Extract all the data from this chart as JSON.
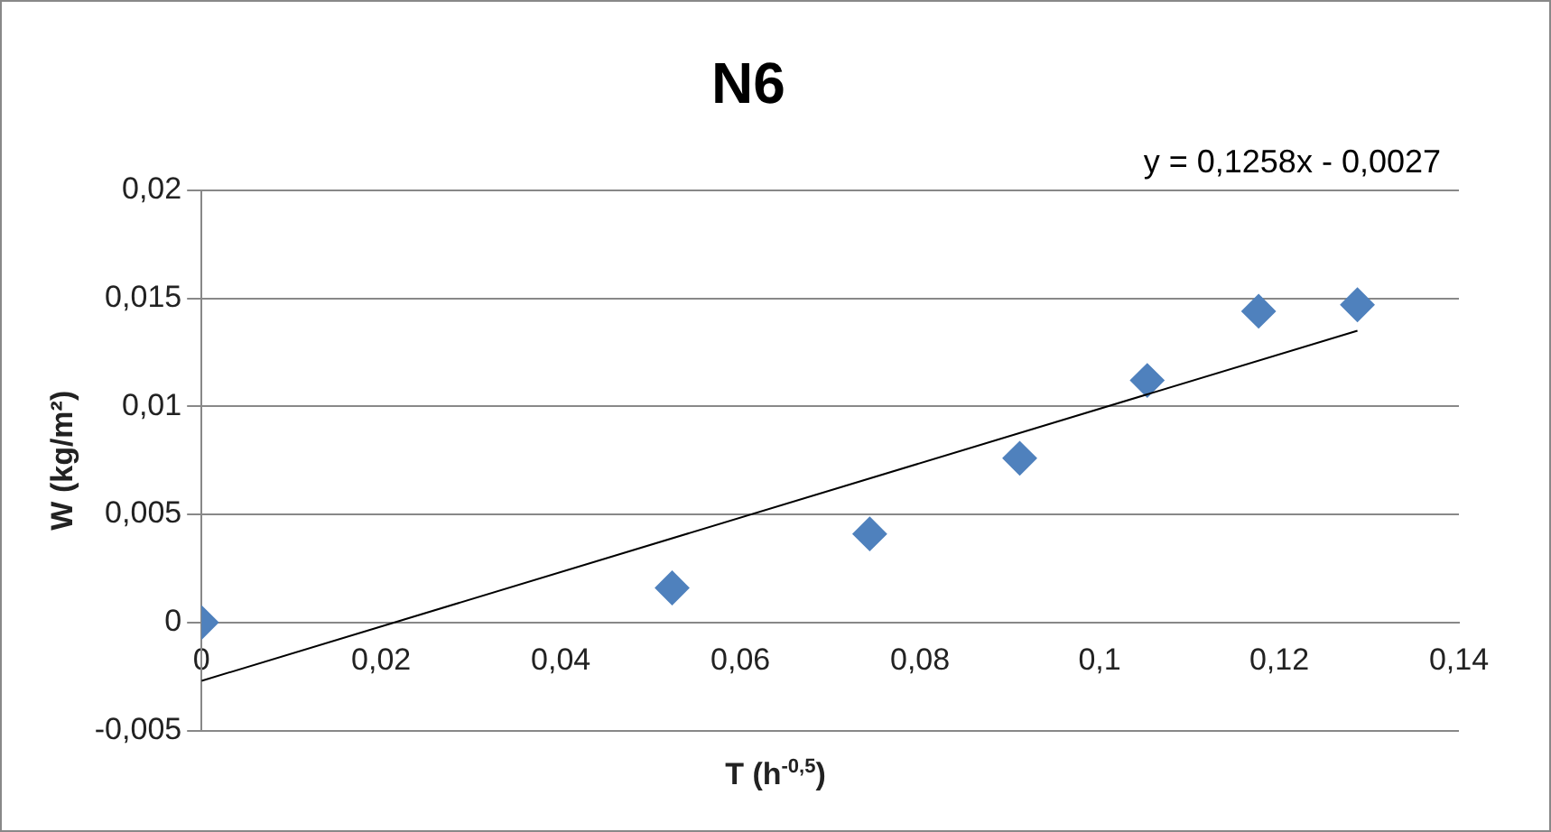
{
  "chart_data": {
    "type": "scatter",
    "title": "N6",
    "xlabel": "T (h$^{-0,5}$)",
    "ylabel": "W (kg/m²)",
    "annotations": [
      "y = 0,1258x - 0,0027"
    ],
    "xlim": [
      0,
      0.14
    ],
    "xticks": [
      0,
      {
        "value": 0.02,
        "label": "0,02"
      },
      {
        "value": 0.04,
        "label": "0,04"
      },
      {
        "value": 0.06,
        "label": "0,06"
      },
      {
        "value": 0.08,
        "label": "0,08"
      },
      {
        "value": 0.1,
        "label": "0,1"
      },
      {
        "value": 0.12,
        "label": "0,12"
      },
      {
        "value": 0.14,
        "label": "0,14"
      }
    ],
    "ylim": [
      -0.005,
      0.02
    ],
    "yticks": [
      {
        "value": -0.005,
        "label": "-0,005"
      },
      0,
      {
        "value": 0.005,
        "label": "0,005"
      },
      {
        "value": 0.01,
        "label": "0,01"
      },
      {
        "value": 0.015,
        "label": "0,015"
      },
      {
        "value": 0.02,
        "label": "0,02"
      }
    ],
    "grid": "y",
    "legend": false,
    "series": [
      {
        "color": "#4f81bd",
        "marker": "diamond",
        "x": [
          0,
          0.0524,
          0.0744,
          0.0911,
          0.1053,
          0.1177,
          0.1287
        ],
        "values": [
          0,
          0.0016,
          0.0041,
          0.0076,
          0.0112,
          0.0144,
          0.0147
        ]
      },
      {
        "type": "line",
        "color": "#000000",
        "marker": "none",
        "x": [
          0,
          0.1287
        ],
        "values": [
          -0.0027,
          0.0135
        ]
      }
    ]
  }
}
